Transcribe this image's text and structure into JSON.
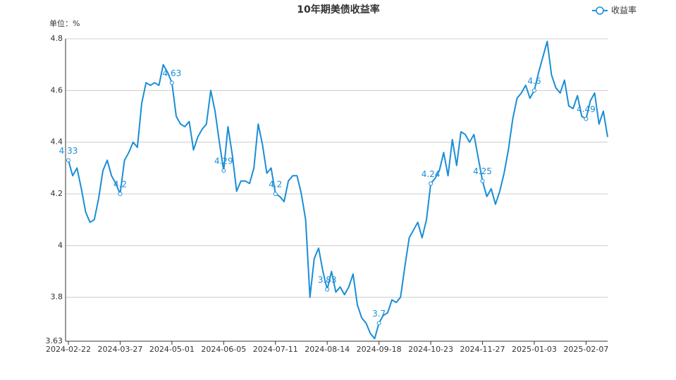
{
  "chart_data": {
    "type": "line",
    "title": "10年期美债收益率",
    "y_label": "单位：%",
    "categories": [
      "2024-02-22",
      null,
      null,
      null,
      null,
      null,
      null,
      null,
      null,
      null,
      null,
      null,
      "2024-03-27",
      null,
      null,
      null,
      null,
      null,
      null,
      null,
      null,
      null,
      null,
      null,
      "2024-05-01",
      null,
      null,
      null,
      null,
      null,
      null,
      null,
      null,
      null,
      null,
      null,
      "2024-06-05",
      null,
      null,
      null,
      null,
      null,
      null,
      null,
      null,
      null,
      null,
      null,
      "2024-07-11",
      null,
      null,
      null,
      null,
      null,
      null,
      null,
      null,
      null,
      null,
      null,
      "2024-08-14",
      null,
      null,
      null,
      null,
      null,
      null,
      null,
      null,
      null,
      null,
      null,
      "2024-09-18",
      null,
      null,
      null,
      null,
      null,
      null,
      null,
      null,
      null,
      null,
      null,
      "2024-10-23",
      null,
      null,
      null,
      null,
      null,
      null,
      null,
      null,
      null,
      null,
      null,
      "2024-11-27",
      null,
      null,
      null,
      null,
      null,
      null,
      null,
      null,
      null,
      null,
      null,
      "2025-01-03",
      null,
      null,
      null,
      null,
      null,
      null,
      null,
      null,
      null,
      null,
      null,
      "2025-02-07",
      null,
      null,
      null,
      null,
      null
    ],
    "series": [
      {
        "name": "收益率",
        "color": "#1a8ed6",
        "values": [
          4.33,
          4.27,
          4.3,
          4.22,
          4.13,
          4.09,
          4.1,
          4.18,
          4.29,
          4.33,
          4.27,
          4.24,
          4.2,
          4.33,
          4.36,
          4.4,
          4.38,
          4.55,
          4.63,
          4.62,
          4.63,
          4.62,
          4.7,
          4.67,
          4.63,
          4.5,
          4.47,
          4.46,
          4.48,
          4.37,
          4.42,
          4.45,
          4.47,
          4.6,
          4.52,
          4.4,
          4.29,
          4.46,
          4.35,
          4.21,
          4.25,
          4.25,
          4.24,
          4.3,
          4.47,
          4.39,
          4.28,
          4.3,
          4.2,
          4.19,
          4.17,
          4.25,
          4.27,
          4.27,
          4.2,
          4.1,
          3.8,
          3.95,
          3.99,
          3.9,
          3.83,
          3.9,
          3.82,
          3.84,
          3.81,
          3.84,
          3.89,
          3.77,
          3.72,
          3.7,
          3.66,
          3.64,
          3.7,
          3.73,
          3.74,
          3.79,
          3.78,
          3.8,
          3.92,
          4.03,
          4.06,
          4.09,
          4.03,
          4.1,
          4.24,
          4.26,
          4.29,
          4.36,
          4.27,
          4.41,
          4.31,
          4.44,
          4.43,
          4.4,
          4.43,
          4.34,
          4.25,
          4.19,
          4.22,
          4.16,
          4.21,
          4.28,
          4.37,
          4.49,
          4.57,
          4.59,
          4.62,
          4.57,
          4.6,
          4.67,
          4.73,
          4.79,
          4.66,
          4.61,
          4.59,
          4.64,
          4.54,
          4.53,
          4.58,
          4.5,
          4.49,
          4.56,
          4.59,
          4.47,
          4.52,
          4.42
        ]
      }
    ],
    "ylim": [
      3.63,
      4.8
    ],
    "yticks": [
      3.63,
      3.8,
      4,
      4.2,
      4.4,
      4.6,
      4.8
    ],
    "grid": true,
    "legend": "top-right"
  }
}
